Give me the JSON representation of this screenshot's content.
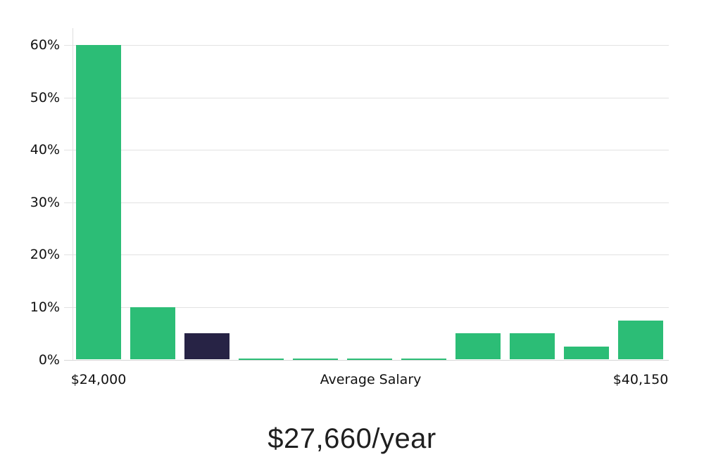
{
  "chart_data": {
    "type": "bar",
    "title": "$27,660/year",
    "values": [
      60,
      10,
      5,
      0.25,
      0.25,
      0.25,
      0.25,
      5,
      5,
      2.5,
      7.5
    ],
    "highlighted_bar_index": 2,
    "y_ticks": [
      {
        "value": 0,
        "label": "0%"
      },
      {
        "value": 10,
        "label": "10%"
      },
      {
        "value": 20,
        "label": "20%"
      },
      {
        "value": 30,
        "label": "30%"
      },
      {
        "value": 40,
        "label": "40%"
      },
      {
        "value": 50,
        "label": "50%"
      },
      {
        "value": 60,
        "label": "60%"
      }
    ],
    "ylim": [
      0,
      63.2
    ],
    "x_axis_labels": [
      {
        "text": "$24,000",
        "anchor": "first-bar"
      },
      {
        "text": "Average Salary",
        "anchor": "center"
      },
      {
        "text": "$40,150",
        "anchor": "last-bar"
      }
    ],
    "legend": false,
    "grid": true,
    "colors": {
      "bar_green": "#2cbd76",
      "bar_navy": "#272345",
      "gridline": "#e2e2e2",
      "axis_line": "#dedede",
      "text": "#111111"
    }
  }
}
